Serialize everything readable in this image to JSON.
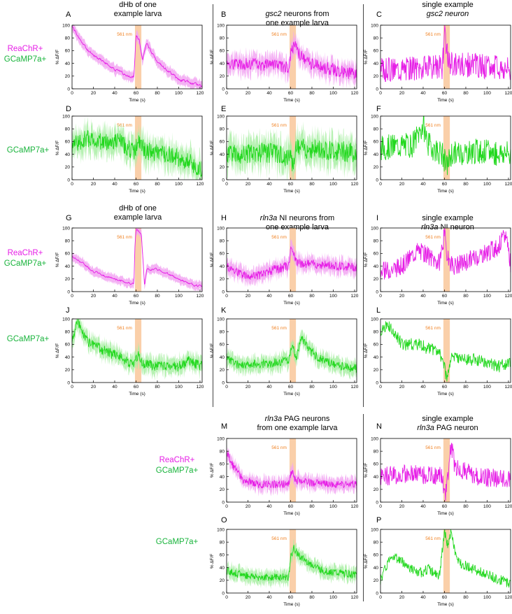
{
  "columns": {
    "col1_title": [
      "dHb of one",
      "example larva"
    ],
    "col2_title": {
      "italic": "gsc2",
      "rest": " neurons from",
      "line2": "one example larva"
    },
    "col3_title": [
      "single example",
      "gsc2 neuron"
    ],
    "col1_title_g": [
      "dHb of one",
      "example larva"
    ],
    "col2_title_h": {
      "italic": "rln3a",
      "rest": " NI neurons from",
      "line2": "one example larva"
    },
    "col3_title_i": {
      "line1": "single example",
      "italic": "rln3a",
      "rest": " NI neuron"
    },
    "col2_title_m": {
      "italic": "rln3a",
      "rest": " PAG neurons",
      "line2": "from one example larva"
    },
    "col3_title_n": {
      "line1": "single example",
      "italic": "rln3a",
      "rest": " PAG neuron"
    }
  },
  "row_labels": {
    "reachr": "ReaChR+",
    "gcamp": "GCaMP7a+",
    "gcamp_only": "GCaMP7a+"
  },
  "colors": {
    "magenta": "#e61ee6",
    "green": "#22d81e",
    "stim": "#f9c79a",
    "stim_text": "#f08020"
  },
  "chart_data": [
    {
      "id": "A",
      "type": "line",
      "letter": "A",
      "color": "magenta",
      "seed": 1,
      "xlabel": "Time (s)",
      "ylabel": "% ΔF/F",
      "ylim": [
        0,
        100
      ],
      "xlim": [
        0,
        122
      ],
      "xticks": [
        0,
        20,
        40,
        60,
        80,
        100,
        120
      ],
      "yticks": [
        0,
        20,
        40,
        60,
        80,
        100
      ],
      "stim_label": "561 nm",
      "stim": [
        59,
        65
      ],
      "band": true,
      "smooth": true,
      "anchors": [
        [
          0,
          98
        ],
        [
          10,
          70
        ],
        [
          20,
          52
        ],
        [
          30,
          42
        ],
        [
          40,
          30
        ],
        [
          50,
          22
        ],
        [
          58,
          18
        ],
        [
          60,
          82
        ],
        [
          63,
          78
        ],
        [
          66,
          45
        ],
        [
          70,
          70
        ],
        [
          80,
          42
        ],
        [
          90,
          28
        ],
        [
          100,
          15
        ],
        [
          110,
          10
        ],
        [
          122,
          4
        ]
      ],
      "noise": 4
    },
    {
      "id": "B",
      "type": "line",
      "letter": "B",
      "color": "magenta",
      "seed": 2,
      "xlabel": "Time (s)",
      "ylabel": "% ΔF/F",
      "ylim": [
        0,
        100
      ],
      "xlim": [
        0,
        122
      ],
      "xticks": [
        0,
        20,
        40,
        60,
        80,
        100,
        120
      ],
      "yticks": [
        0,
        20,
        40,
        60,
        80,
        100
      ],
      "stim_label": "561 nm",
      "stim": [
        59,
        65
      ],
      "band": true,
      "anchors": [
        [
          0,
          40
        ],
        [
          30,
          38
        ],
        [
          58,
          34
        ],
        [
          61,
          62
        ],
        [
          64,
          70
        ],
        [
          67,
          55
        ],
        [
          80,
          38
        ],
        [
          100,
          30
        ],
        [
          122,
          22
        ]
      ],
      "noise": 10
    },
    {
      "id": "C",
      "type": "line",
      "letter": "C",
      "color": "magenta",
      "seed": 3,
      "xlabel": "Time (s)",
      "ylabel": "% ΔF/F",
      "ylim": [
        0,
        100
      ],
      "xlim": [
        0,
        122
      ],
      "xticks": [
        0,
        20,
        40,
        60,
        80,
        100,
        120
      ],
      "yticks": [
        0,
        20,
        40,
        60,
        80,
        100
      ],
      "stim_label": "561 nm",
      "stim": [
        59,
        65
      ],
      "band": false,
      "anchors": [
        [
          0,
          30
        ],
        [
          30,
          33
        ],
        [
          58,
          35
        ],
        [
          60,
          85
        ],
        [
          62,
          60
        ],
        [
          65,
          40
        ],
        [
          122,
          32
        ]
      ],
      "noise": 20
    },
    {
      "id": "D",
      "type": "line",
      "letter": "D",
      "color": "green",
      "seed": 4,
      "xlabel": "Time (s)",
      "ylabel": "% ΔF/F",
      "ylim": [
        0,
        100
      ],
      "xlim": [
        0,
        122
      ],
      "xticks": [
        0,
        20,
        40,
        60,
        80,
        100,
        120
      ],
      "yticks": [
        0,
        20,
        40,
        60,
        80,
        100
      ],
      "stim_label": "561 nm",
      "stim": [
        59,
        65
      ],
      "band": true,
      "anchors": [
        [
          0,
          55
        ],
        [
          15,
          65
        ],
        [
          30,
          58
        ],
        [
          45,
          60
        ],
        [
          58,
          42
        ],
        [
          62,
          58
        ],
        [
          70,
          45
        ],
        [
          90,
          40
        ],
        [
          110,
          28
        ],
        [
          122,
          15
        ]
      ],
      "noise": 14
    },
    {
      "id": "E",
      "type": "line",
      "letter": "E",
      "color": "green",
      "seed": 5,
      "xlabel": "Time (s)",
      "ylabel": "% ΔF/F",
      "ylim": [
        0,
        100
      ],
      "xlim": [
        0,
        122
      ],
      "xticks": [
        0,
        20,
        40,
        60,
        80,
        100,
        120
      ],
      "yticks": [
        0,
        20,
        40,
        60,
        80,
        100
      ],
      "stim_label": "561 nm",
      "stim": [
        59,
        65
      ],
      "band": true,
      "anchors": [
        [
          0,
          40
        ],
        [
          40,
          42
        ],
        [
          58,
          35
        ],
        [
          62,
          28
        ],
        [
          66,
          50
        ],
        [
          90,
          48
        ],
        [
          122,
          42
        ]
      ],
      "noise": 16
    },
    {
      "id": "F",
      "type": "line",
      "letter": "F",
      "color": "green",
      "seed": 6,
      "xlabel": "Time (s)",
      "ylabel": "% ΔF/F",
      "ylim": [
        0,
        100
      ],
      "xlim": [
        0,
        122
      ],
      "xticks": [
        0,
        20,
        40,
        60,
        80,
        100,
        120
      ],
      "yticks": [
        0,
        20,
        40,
        60,
        80,
        100
      ],
      "stim_label": "561 nm",
      "stim": [
        59,
        65
      ],
      "band": false,
      "anchors": [
        [
          0,
          50
        ],
        [
          30,
          55
        ],
        [
          40,
          85
        ],
        [
          45,
          55
        ],
        [
          58,
          40
        ],
        [
          62,
          20
        ],
        [
          66,
          40
        ],
        [
          90,
          45
        ],
        [
          122,
          40
        ]
      ],
      "noise": 20
    },
    {
      "id": "G",
      "type": "line",
      "letter": "G",
      "color": "magenta",
      "seed": 7,
      "xlabel": "Time (s)",
      "ylabel": "% ΔF/F",
      "ylim": [
        0,
        100
      ],
      "xlim": [
        0,
        122
      ],
      "xticks": [
        0,
        20,
        40,
        60,
        80,
        100,
        120
      ],
      "yticks": [
        0,
        20,
        40,
        60,
        80,
        100
      ],
      "stim_label": "561 nm",
      "stim": [
        59,
        65
      ],
      "band": true,
      "smooth": true,
      "anchors": [
        [
          0,
          55
        ],
        [
          10,
          45
        ],
        [
          20,
          32
        ],
        [
          30,
          25
        ],
        [
          40,
          20
        ],
        [
          50,
          15
        ],
        [
          58,
          12
        ],
        [
          59,
          72
        ],
        [
          60,
          97
        ],
        [
          63,
          95
        ],
        [
          65,
          90
        ],
        [
          68,
          10
        ],
        [
          70,
          35
        ],
        [
          80,
          35
        ],
        [
          90,
          28
        ],
        [
          100,
          20
        ],
        [
          110,
          12
        ],
        [
          122,
          8
        ]
      ],
      "noise": 3
    },
    {
      "id": "H",
      "type": "line",
      "letter": "H",
      "color": "magenta",
      "seed": 8,
      "xlabel": "Time (s)",
      "ylabel": "% ΔF/F",
      "ylim": [
        0,
        100
      ],
      "xlim": [
        0,
        122
      ],
      "xticks": [
        0,
        20,
        40,
        60,
        80,
        100,
        120
      ],
      "yticks": [
        0,
        20,
        40,
        60,
        80,
        100
      ],
      "stim_label": "561 nm",
      "stim": [
        59,
        65
      ],
      "band": true,
      "anchors": [
        [
          0,
          40
        ],
        [
          15,
          25
        ],
        [
          30,
          25
        ],
        [
          45,
          35
        ],
        [
          58,
          40
        ],
        [
          61,
          72
        ],
        [
          63,
          60
        ],
        [
          66,
          45
        ],
        [
          90,
          42
        ],
        [
          122,
          38
        ]
      ],
      "noise": 7
    },
    {
      "id": "I",
      "type": "line",
      "letter": "I",
      "color": "magenta",
      "seed": 9,
      "xlabel": "Time (s)",
      "ylabel": "% ΔF/F",
      "ylim": [
        0,
        100
      ],
      "xlim": [
        0,
        122
      ],
      "xticks": [
        0,
        20,
        40,
        60,
        80,
        100,
        120
      ],
      "yticks": [
        0,
        20,
        40,
        60,
        80,
        100
      ],
      "stim_label": "561 nm",
      "stim": [
        59,
        65
      ],
      "band": false,
      "anchors": [
        [
          0,
          30
        ],
        [
          20,
          40
        ],
        [
          35,
          65
        ],
        [
          45,
          55
        ],
        [
          55,
          45
        ],
        [
          60,
          90
        ],
        [
          63,
          50
        ],
        [
          70,
          40
        ],
        [
          90,
          55
        ],
        [
          110,
          70
        ],
        [
          118,
          90
        ],
        [
          122,
          45
        ]
      ],
      "noise": 15
    },
    {
      "id": "J",
      "type": "line",
      "letter": "J",
      "color": "green",
      "seed": 10,
      "xlabel": "Time (s)",
      "ylabel": "% ΔF/F",
      "ylim": [
        0,
        100
      ],
      "xlim": [
        0,
        122
      ],
      "xticks": [
        0,
        20,
        40,
        60,
        80,
        100,
        120
      ],
      "yticks": [
        0,
        20,
        40,
        60,
        80,
        100
      ],
      "stim_label": "561 nm",
      "stim": [
        59,
        65
      ],
      "band": true,
      "anchors": [
        [
          0,
          70
        ],
        [
          5,
          95
        ],
        [
          15,
          65
        ],
        [
          30,
          50
        ],
        [
          45,
          40
        ],
        [
          58,
          25
        ],
        [
          62,
          45
        ],
        [
          66,
          30
        ],
        [
          80,
          25
        ],
        [
          100,
          25
        ],
        [
          110,
          35
        ],
        [
          122,
          25
        ]
      ],
      "noise": 8
    },
    {
      "id": "K",
      "type": "line",
      "letter": "K",
      "color": "green",
      "seed": 11,
      "xlabel": "Time (s)",
      "ylabel": "% ΔF/F",
      "ylim": [
        0,
        100
      ],
      "xlim": [
        0,
        122
      ],
      "xticks": [
        0,
        20,
        40,
        60,
        80,
        100,
        120
      ],
      "yticks": [
        0,
        20,
        40,
        60,
        80,
        100
      ],
      "stim_label": "561 nm",
      "stim": [
        59,
        65
      ],
      "band": true,
      "anchors": [
        [
          0,
          40
        ],
        [
          10,
          28
        ],
        [
          40,
          30
        ],
        [
          58,
          35
        ],
        [
          62,
          58
        ],
        [
          65,
          35
        ],
        [
          70,
          70
        ],
        [
          78,
          50
        ],
        [
          90,
          35
        ],
        [
          110,
          25
        ],
        [
          122,
          22
        ]
      ],
      "noise": 7
    },
    {
      "id": "L",
      "type": "line",
      "letter": "L",
      "color": "green",
      "seed": 12,
      "xlabel": "Time (s)",
      "ylabel": "% ΔF/F",
      "ylim": [
        0,
        100
      ],
      "xlim": [
        0,
        122
      ],
      "xticks": [
        0,
        20,
        40,
        60,
        80,
        100,
        120
      ],
      "yticks": [
        0,
        20,
        40,
        60,
        80,
        100
      ],
      "stim_label": "561 nm",
      "stim": [
        59,
        65
      ],
      "band": false,
      "anchors": [
        [
          0,
          80
        ],
        [
          8,
          90
        ],
        [
          20,
          60
        ],
        [
          35,
          60
        ],
        [
          50,
          50
        ],
        [
          58,
          40
        ],
        [
          62,
          5
        ],
        [
          66,
          40
        ],
        [
          90,
          35
        ],
        [
          110,
          25
        ],
        [
          122,
          30
        ]
      ],
      "noise": 10
    },
    {
      "id": "M",
      "type": "line",
      "letter": "M",
      "color": "magenta",
      "seed": 13,
      "xlabel": "Time (s)",
      "ylabel": "% ΔF/F",
      "ylim": [
        0,
        100
      ],
      "xlim": [
        0,
        122
      ],
      "xticks": [
        0,
        20,
        40,
        60,
        80,
        100,
        120
      ],
      "yticks": [
        0,
        20,
        40,
        60,
        80,
        100
      ],
      "stim_label": "561 nm",
      "stim": [
        59,
        65
      ],
      "band": true,
      "anchors": [
        [
          0,
          80
        ],
        [
          5,
          60
        ],
        [
          15,
          35
        ],
        [
          30,
          28
        ],
        [
          58,
          28
        ],
        [
          61,
          48
        ],
        [
          64,
          35
        ],
        [
          80,
          30
        ],
        [
          100,
          28
        ],
        [
          122,
          28
        ]
      ],
      "noise": 6
    },
    {
      "id": "N",
      "type": "line",
      "letter": "N",
      "color": "magenta",
      "seed": 14,
      "xlabel": "Time (s)",
      "ylabel": "% ΔF/F",
      "ylim": [
        0,
        100
      ],
      "xlim": [
        0,
        122
      ],
      "xticks": [
        0,
        20,
        40,
        60,
        80,
        100,
        120
      ],
      "yticks": [
        0,
        20,
        40,
        60,
        80,
        100
      ],
      "stim_label": "561 nm",
      "stim": [
        59,
        65
      ],
      "band": false,
      "anchors": [
        [
          0,
          40
        ],
        [
          30,
          45
        ],
        [
          58,
          40
        ],
        [
          60,
          5
        ],
        [
          63,
          40
        ],
        [
          66,
          90
        ],
        [
          70,
          55
        ],
        [
          90,
          40
        ],
        [
          122,
          35
        ]
      ],
      "noise": 15
    },
    {
      "id": "O",
      "type": "line",
      "letter": "O",
      "color": "green",
      "seed": 15,
      "xlabel": "Time (s)",
      "ylabel": "% ΔF/F",
      "ylim": [
        0,
        100
      ],
      "xlim": [
        0,
        122
      ],
      "xticks": [
        0,
        20,
        40,
        60,
        80,
        100,
        120
      ],
      "yticks": [
        0,
        20,
        40,
        60,
        80,
        100
      ],
      "stim_label": "561 nm",
      "stim": [
        59,
        65
      ],
      "band": true,
      "anchors": [
        [
          0,
          35
        ],
        [
          10,
          30
        ],
        [
          30,
          25
        ],
        [
          58,
          25
        ],
        [
          60,
          55
        ],
        [
          63,
          70
        ],
        [
          70,
          55
        ],
        [
          90,
          35
        ],
        [
          122,
          28
        ]
      ],
      "noise": 6
    },
    {
      "id": "P",
      "type": "line",
      "letter": "P",
      "color": "green",
      "seed": 16,
      "xlabel": "Time (s)",
      "ylabel": "% ΔF/F",
      "ylim": [
        0,
        100
      ],
      "xlim": [
        0,
        122
      ],
      "xticks": [
        0,
        20,
        40,
        60,
        80,
        100,
        120
      ],
      "yticks": [
        0,
        20,
        40,
        60,
        80,
        100
      ],
      "stim_label": "561 nm",
      "stim": [
        59,
        65
      ],
      "band": false,
      "anchors": [
        [
          0,
          20
        ],
        [
          10,
          60
        ],
        [
          20,
          50
        ],
        [
          35,
          30
        ],
        [
          45,
          38
        ],
        [
          55,
          25
        ],
        [
          60,
          95
        ],
        [
          63,
          75
        ],
        [
          66,
          95
        ],
        [
          72,
          50
        ],
        [
          90,
          35
        ],
        [
          110,
          22
        ],
        [
          122,
          15
        ]
      ],
      "noise": 8
    }
  ]
}
